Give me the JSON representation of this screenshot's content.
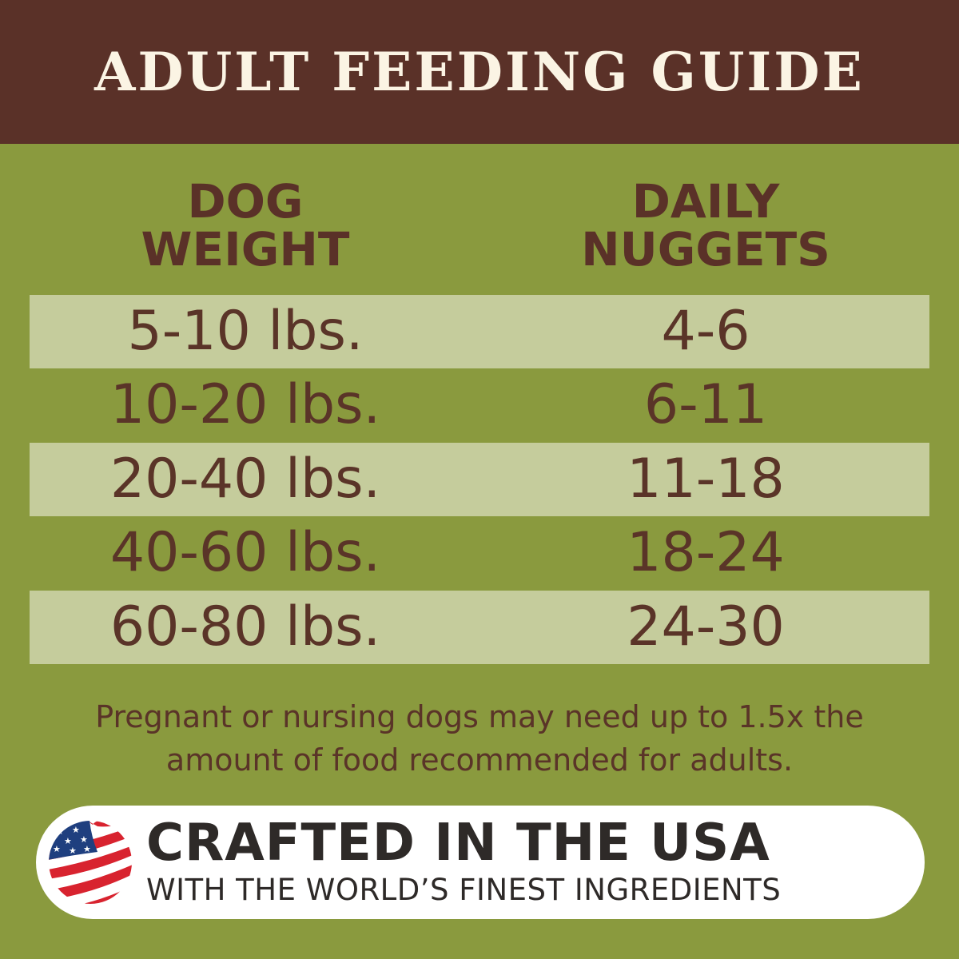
{
  "title": "ADULT FEEDING GUIDE",
  "columns": {
    "weight": [
      "DOG",
      "WEIGHT"
    ],
    "nuggets": [
      "DAILY",
      "NUGGETS"
    ]
  },
  "rows": [
    {
      "weight": "5-10 lbs.",
      "nuggets": "4-6"
    },
    {
      "weight": "10-20 lbs.",
      "nuggets": "6-11"
    },
    {
      "weight": "20-40 lbs.",
      "nuggets": "11-18"
    },
    {
      "weight": "40-60 lbs.",
      "nuggets": "18-24"
    },
    {
      "weight": "60-80 lbs.",
      "nuggets": "24-30"
    }
  ],
  "note": [
    "Pregnant or nursing dogs may need up to 1.5x the",
    "amount of food recommended for adults."
  ],
  "badge": {
    "headline": "CRAFTED IN THE USA",
    "subline": "WITH THE WORLD’S FINEST INGREDIENTS",
    "icon": "us-flag-icon"
  },
  "colors": {
    "header": "#5a3128",
    "background": "#8a9a3e",
    "band": "#c5cc9c",
    "text": "#5a3428"
  }
}
